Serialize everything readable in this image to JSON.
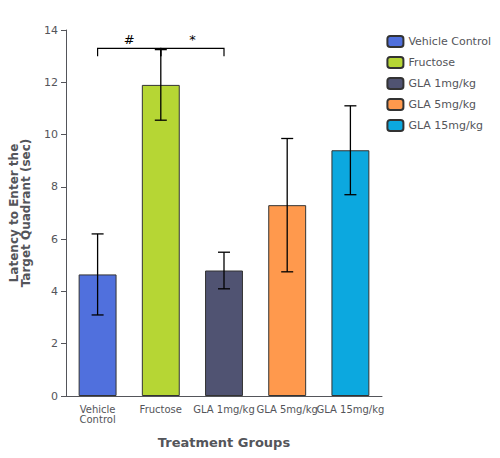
{
  "chart_data": {
    "type": "bar",
    "xlabel": "Treatment Groups",
    "ylabel": "Latency to Enter the\nTarget Quadrant (sec)",
    "categories": [
      "Vehicle\nControl",
      "Fructose",
      "GLA 1mg/kg",
      "GLA 5mg/kg",
      "GLA 15mg/kg"
    ],
    "series": [
      {
        "name": "Vehicle Control",
        "values": [
          4.65,
          null,
          null,
          null,
          null
        ],
        "errors": [
          1.55,
          null,
          null,
          null,
          null
        ]
      },
      {
        "name": "Fructose",
        "values": [
          null,
          11.9,
          null,
          null,
          null
        ],
        "errors": [
          null,
          1.35,
          null,
          null,
          null
        ]
      },
      {
        "name": "GLA 1mg/kg",
        "values": [
          null,
          null,
          4.8,
          null,
          null
        ],
        "errors": [
          null,
          null,
          0.7,
          null,
          null
        ]
      },
      {
        "name": "GLA 5mg/kg",
        "values": [
          null,
          null,
          null,
          7.3,
          null
        ],
        "errors": [
          null,
          null,
          null,
          2.55,
          null
        ]
      },
      {
        "name": "GLA 15mg/kg",
        "values": [
          null,
          null,
          null,
          null,
          9.4
        ],
        "errors": [
          null,
          null,
          null,
          null,
          1.7
        ]
      }
    ],
    "ylim": [
      0,
      14
    ],
    "yticks": [
      0,
      2,
      4,
      6,
      8,
      10,
      12,
      14
    ],
    "grid": false,
    "legend": "upper right",
    "annotations": [
      {
        "text": "#",
        "from": "Vehicle\nControl",
        "to": "Fructose",
        "y": 13.3,
        "drop": 0.3
      },
      {
        "text": "*",
        "from": "Fructose",
        "to": "GLA 1mg/kg",
        "y": 13.3,
        "drop": 0.3
      }
    ]
  }
}
